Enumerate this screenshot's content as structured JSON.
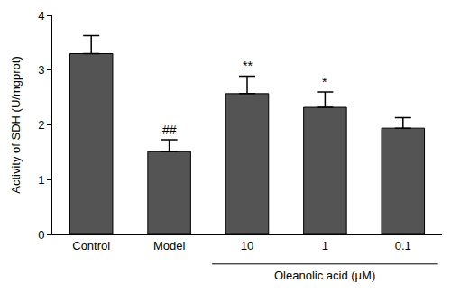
{
  "chart_data": {
    "type": "bar",
    "categories": [
      "Control",
      "Model",
      "10",
      "1",
      "0.1"
    ],
    "values": [
      3.3,
      1.51,
      2.57,
      2.32,
      1.94
    ],
    "errors": [
      0.33,
      0.22,
      0.32,
      0.28,
      0.19
    ],
    "color": "#545454",
    "y_label": "Activity of SDH (U/mgprot)",
    "ylim": [
      0,
      4
    ],
    "yticks": [
      0,
      1,
      2,
      3,
      4
    ],
    "grid": false,
    "annotations": [
      {
        "text": "##",
        "category": "Model"
      },
      {
        "text": "**",
        "category": "10"
      },
      {
        "text": "*",
        "category": "1"
      }
    ],
    "group_label": {
      "text": "Oleanolic acid (μM)",
      "categories": [
        "10",
        "1",
        "0.1"
      ]
    }
  }
}
